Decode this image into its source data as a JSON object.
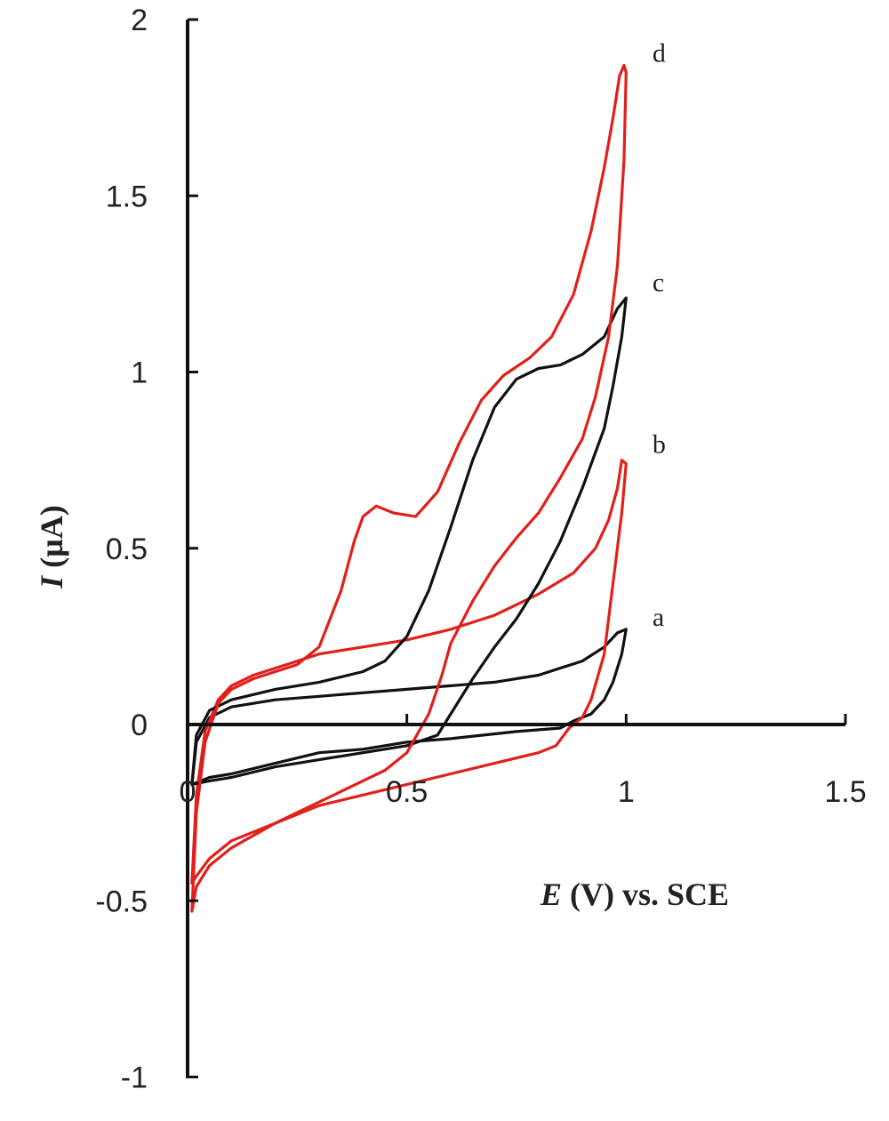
{
  "chart_data": {
    "type": "line",
    "title": "",
    "xlabel": {
      "italic": "E",
      "rest": " (V) vs. SCE"
    },
    "ylabel": {
      "italic": "I",
      "rest": " (µA)"
    },
    "xlim": [
      0,
      1.5
    ],
    "ylim": [
      -1,
      2
    ],
    "x_ticks": [
      {
        "value": 0,
        "label": "0"
      },
      {
        "value": 0.5,
        "label": "0.5"
      },
      {
        "value": 1,
        "label": "1"
      },
      {
        "value": 1.5,
        "label": "1.5"
      }
    ],
    "y_ticks": [
      {
        "value": -1,
        "label": "-1"
      },
      {
        "value": -0.5,
        "label": "-0.5"
      },
      {
        "value": 0,
        "label": "0"
      },
      {
        "value": 0.5,
        "label": "0.5"
      },
      {
        "value": 1,
        "label": "1"
      },
      {
        "value": 1.5,
        "label": "1.5"
      },
      {
        "value": 2,
        "label": "2"
      }
    ],
    "grid": false,
    "colors": {
      "black": "#111111",
      "red": "#e0201b"
    },
    "series": [
      {
        "curve_label": "a",
        "color": "#111111",
        "label_at": [
          1.06,
          0.28
        ],
        "points": [
          [
            0.01,
            -0.17
          ],
          [
            0.02,
            -0.05
          ],
          [
            0.05,
            0.02
          ],
          [
            0.1,
            0.05
          ],
          [
            0.2,
            0.07
          ],
          [
            0.3,
            0.08
          ],
          [
            0.4,
            0.09
          ],
          [
            0.5,
            0.1
          ],
          [
            0.6,
            0.11
          ],
          [
            0.7,
            0.12
          ],
          [
            0.8,
            0.14
          ],
          [
            0.9,
            0.18
          ],
          [
            0.95,
            0.22
          ],
          [
            0.98,
            0.26
          ],
          [
            1.0,
            0.27
          ],
          [
            0.99,
            0.2
          ],
          [
            0.97,
            0.12
          ],
          [
            0.95,
            0.07
          ],
          [
            0.92,
            0.03
          ],
          [
            0.88,
            0.01
          ],
          [
            0.85,
            -0.01
          ],
          [
            0.75,
            -0.02
          ],
          [
            0.6,
            -0.04
          ],
          [
            0.5,
            -0.05
          ],
          [
            0.4,
            -0.07
          ],
          [
            0.3,
            -0.08
          ],
          [
            0.2,
            -0.11
          ],
          [
            0.1,
            -0.14
          ],
          [
            0.05,
            -0.15
          ],
          [
            0.01,
            -0.17
          ]
        ]
      },
      {
        "curve_label": "b",
        "color": "#e0201b",
        "label_at": [
          1.06,
          0.77
        ],
        "points": [
          [
            0.01,
            -0.45
          ],
          [
            0.02,
            -0.2
          ],
          [
            0.04,
            -0.02
          ],
          [
            0.07,
            0.07
          ],
          [
            0.1,
            0.11
          ],
          [
            0.15,
            0.14
          ],
          [
            0.2,
            0.16
          ],
          [
            0.3,
            0.2
          ],
          [
            0.4,
            0.22
          ],
          [
            0.5,
            0.24
          ],
          [
            0.6,
            0.27
          ],
          [
            0.7,
            0.31
          ],
          [
            0.8,
            0.37
          ],
          [
            0.88,
            0.43
          ],
          [
            0.93,
            0.5
          ],
          [
            0.96,
            0.58
          ],
          [
            0.98,
            0.67
          ],
          [
            0.99,
            0.75
          ],
          [
            1.0,
            0.74
          ],
          [
            0.99,
            0.6
          ],
          [
            0.97,
            0.4
          ],
          [
            0.95,
            0.2
          ],
          [
            0.92,
            0.07
          ],
          [
            0.9,
            0.02
          ],
          [
            0.87,
            -0.01
          ],
          [
            0.84,
            -0.06
          ],
          [
            0.8,
            -0.08
          ],
          [
            0.7,
            -0.11
          ],
          [
            0.6,
            -0.14
          ],
          [
            0.5,
            -0.17
          ],
          [
            0.4,
            -0.2
          ],
          [
            0.3,
            -0.23
          ],
          [
            0.2,
            -0.28
          ],
          [
            0.1,
            -0.33
          ],
          [
            0.05,
            -0.38
          ],
          [
            0.02,
            -0.43
          ],
          [
            0.01,
            -0.45
          ]
        ]
      },
      {
        "curve_label": "c",
        "color": "#111111",
        "label_at": [
          1.06,
          1.23
        ],
        "points": [
          [
            0.01,
            -0.17
          ],
          [
            0.02,
            -0.03
          ],
          [
            0.05,
            0.04
          ],
          [
            0.1,
            0.07
          ],
          [
            0.2,
            0.1
          ],
          [
            0.3,
            0.12
          ],
          [
            0.4,
            0.15
          ],
          [
            0.45,
            0.18
          ],
          [
            0.5,
            0.25
          ],
          [
            0.55,
            0.38
          ],
          [
            0.6,
            0.56
          ],
          [
            0.65,
            0.75
          ],
          [
            0.7,
            0.9
          ],
          [
            0.75,
            0.98
          ],
          [
            0.8,
            1.01
          ],
          [
            0.85,
            1.02
          ],
          [
            0.9,
            1.05
          ],
          [
            0.95,
            1.1
          ],
          [
            0.98,
            1.18
          ],
          [
            1.0,
            1.21
          ],
          [
            0.99,
            1.1
          ],
          [
            0.97,
            0.96
          ],
          [
            0.95,
            0.84
          ],
          [
            0.9,
            0.67
          ],
          [
            0.85,
            0.52
          ],
          [
            0.8,
            0.4
          ],
          [
            0.75,
            0.3
          ],
          [
            0.7,
            0.22
          ],
          [
            0.65,
            0.13
          ],
          [
            0.6,
            0.03
          ],
          [
            0.57,
            -0.03
          ],
          [
            0.5,
            -0.06
          ],
          [
            0.4,
            -0.08
          ],
          [
            0.3,
            -0.1
          ],
          [
            0.2,
            -0.12
          ],
          [
            0.1,
            -0.15
          ],
          [
            0.05,
            -0.16
          ],
          [
            0.01,
            -0.17
          ]
        ]
      },
      {
        "curve_label": "d",
        "color": "#e0201b",
        "label_at": [
          1.06,
          1.88
        ],
        "points": [
          [
            0.01,
            -0.53
          ],
          [
            0.02,
            -0.25
          ],
          [
            0.04,
            -0.05
          ],
          [
            0.07,
            0.06
          ],
          [
            0.1,
            0.1
          ],
          [
            0.15,
            0.13
          ],
          [
            0.2,
            0.15
          ],
          [
            0.25,
            0.17
          ],
          [
            0.3,
            0.22
          ],
          [
            0.35,
            0.38
          ],
          [
            0.38,
            0.52
          ],
          [
            0.4,
            0.59
          ],
          [
            0.43,
            0.62
          ],
          [
            0.47,
            0.6
          ],
          [
            0.52,
            0.59
          ],
          [
            0.57,
            0.66
          ],
          [
            0.62,
            0.8
          ],
          [
            0.67,
            0.92
          ],
          [
            0.72,
            0.99
          ],
          [
            0.78,
            1.04
          ],
          [
            0.83,
            1.1
          ],
          [
            0.88,
            1.22
          ],
          [
            0.92,
            1.4
          ],
          [
            0.95,
            1.58
          ],
          [
            0.97,
            1.72
          ],
          [
            0.985,
            1.84
          ],
          [
            0.995,
            1.87
          ],
          [
            1.0,
            1.85
          ],
          [
            0.995,
            1.6
          ],
          [
            0.98,
            1.3
          ],
          [
            0.96,
            1.1
          ],
          [
            0.93,
            0.93
          ],
          [
            0.9,
            0.81
          ],
          [
            0.85,
            0.7
          ],
          [
            0.8,
            0.6
          ],
          [
            0.75,
            0.53
          ],
          [
            0.7,
            0.45
          ],
          [
            0.65,
            0.35
          ],
          [
            0.6,
            0.23
          ],
          [
            0.58,
            0.14
          ],
          [
            0.55,
            0.03
          ],
          [
            0.5,
            -0.08
          ],
          [
            0.45,
            -0.13
          ],
          [
            0.4,
            -0.16
          ],
          [
            0.3,
            -0.22
          ],
          [
            0.2,
            -0.28
          ],
          [
            0.1,
            -0.35
          ],
          [
            0.05,
            -0.4
          ],
          [
            0.02,
            -0.46
          ],
          [
            0.01,
            -0.53
          ]
        ]
      }
    ]
  }
}
